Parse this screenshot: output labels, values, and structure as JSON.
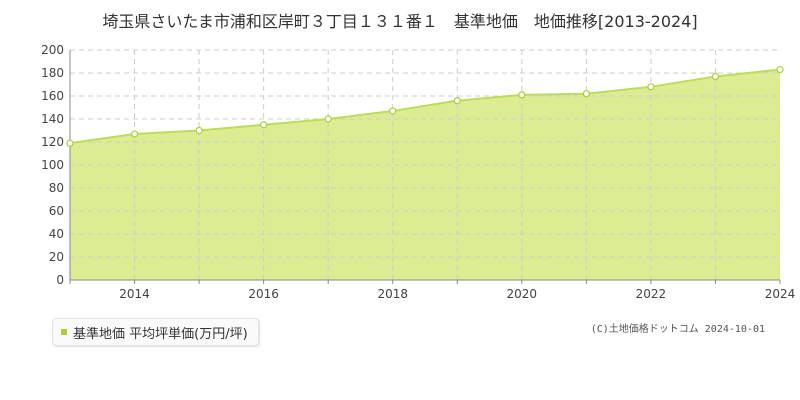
{
  "chart_data": {
    "type": "area",
    "title": "埼玉県さいたま市浦和区岸町３丁目１３１番１　基準地価　地価推移[2013-2024]",
    "x": [
      2013,
      2014,
      2015,
      2016,
      2017,
      2018,
      2019,
      2020,
      2021,
      2022,
      2023,
      2024
    ],
    "series": [
      {
        "name": "基準地価 平均坪単価(万円/坪)",
        "values": [
          119,
          127,
          130,
          135,
          140,
          147,
          156,
          161,
          162,
          168,
          177,
          183
        ]
      }
    ],
    "xlim": [
      2013,
      2024
    ],
    "ylim": [
      0,
      200
    ],
    "xticks": [
      "2014",
      "2016",
      "2018",
      "2020",
      "2022",
      "2024"
    ],
    "yticks": [
      "0",
      "20",
      "40",
      "60",
      "80",
      "100",
      "120",
      "140",
      "160",
      "180",
      "200"
    ],
    "grid": true,
    "legend_position": "bottom-left",
    "colors": {
      "fill": "#dcec93",
      "line": "#bcdc5a",
      "marker": "#a8cf3a",
      "grid": "#cccccc"
    }
  },
  "legend": {
    "label": "基準地価 平均坪単価(万円/坪)"
  },
  "copyright": "(C)土地価格ドットコム 2024-10-01"
}
